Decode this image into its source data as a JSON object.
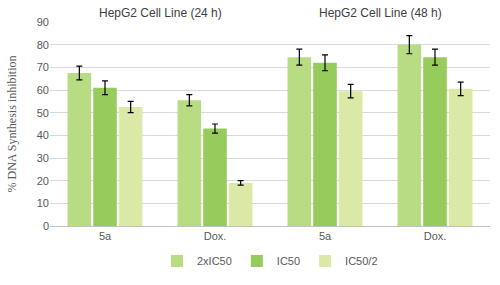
{
  "chart_data": {
    "type": "bar",
    "annotations": [
      "HepG2 Cell Line (24 h)",
      "HepG2 Cell Line (48 h)"
    ],
    "categories": [
      "5a",
      "Dox.",
      "5a",
      "Dox."
    ],
    "y_label": "% DNA Synthesis inhibition",
    "series": [
      {
        "name": "2xIC50",
        "color": "#b8dc84",
        "values": [
          67.5,
          55.5,
          74.5,
          80
        ],
        "errors": [
          3,
          2.5,
          3.5,
          4
        ]
      },
      {
        "name": "IC50",
        "color": "#97cc5c",
        "values": [
          61,
          43,
          72,
          74.5
        ],
        "errors": [
          3,
          2,
          3.5,
          3.5
        ]
      },
      {
        "name": "IC50/2",
        "color": "#dbe9a6",
        "values": [
          52.5,
          19,
          59.5,
          60.5
        ],
        "errors": [
          2.5,
          1,
          3,
          3
        ]
      }
    ],
    "ylim": [
      0,
      90
    ],
    "yticks": [
      0,
      10,
      20,
      30,
      40,
      50,
      60,
      70,
      80,
      90
    ],
    "grid": true,
    "legend": "bottom"
  }
}
